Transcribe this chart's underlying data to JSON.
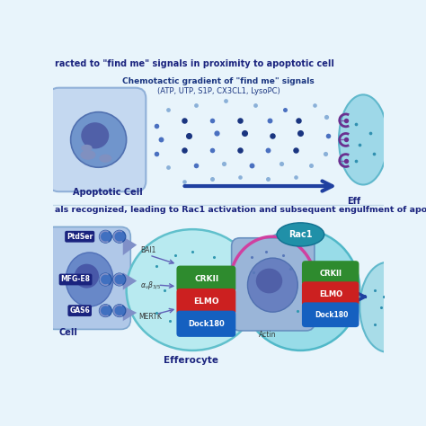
{
  "bg_color": "#e8f4fb",
  "title1": "racted to \"find me\" signals in proximity to apoptotic cell",
  "title2": "als recognized, leading to Rac1 activation and subsequent engulfment of apoptotic cell",
  "chemotactic_title": "Chemotactic gradient of \"find me\" signals",
  "chemotactic_subtitle": "(ATP, UTP, S1P, CX3CL1, LysoPC)",
  "apoptotic_label": "Apoptotic Cell",
  "efferocyte_label": "Eff",
  "efferocyte_label2": "Efferocyte",
  "cell_label": "Cell",
  "navy": "#1a237e",
  "dot_dark": "#1a3580",
  "dot_mid": "#4a70c0",
  "dot_light": "#8ab0d8",
  "cell_blue_light": "#b8cce4",
  "cell_blue_mid": "#7095cc",
  "cell_blue_dark": "#4060a8",
  "teal_light": "#a0dce8",
  "teal_mid": "#40a8c0",
  "purple_sig": "#6a3090",
  "green_crkii": "#2e8b2e",
  "red_elmo": "#cc2020",
  "blue_dock": "#1560c0"
}
